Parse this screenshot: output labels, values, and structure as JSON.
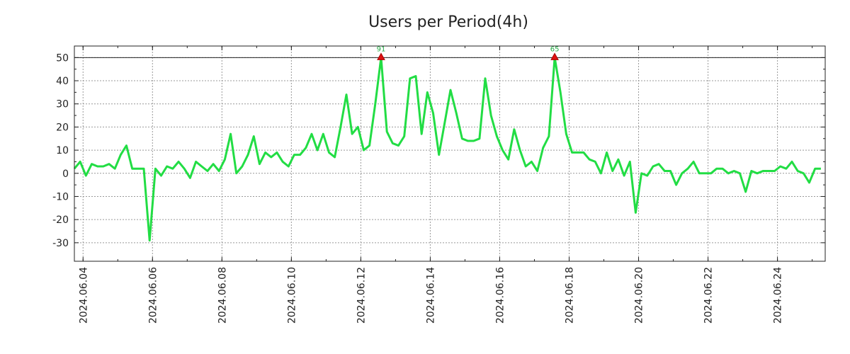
{
  "chart_data": {
    "type": "line",
    "title": "Users per Period(4h)",
    "xlabel": "",
    "ylabel": "",
    "ylim": [
      -38,
      55
    ],
    "yticks": [
      50,
      40,
      30,
      20,
      10,
      0,
      -10,
      -20,
      -30
    ],
    "ytick_labels": [
      "50",
      "40",
      "30",
      "20",
      "10",
      "0",
      "-10",
      "-20",
      "-30"
    ],
    "x_start": "2024-06-03 18:00",
    "x_end": "2024-06-25 09:00",
    "x_step_hours": 4,
    "xticks": [
      "2024-06-04",
      "2024-06-06",
      "2024-06-08",
      "2024-06-10",
      "2024-06-12",
      "2024-06-14",
      "2024-06-16",
      "2024-06-18",
      "2024-06-20",
      "2024-06-22",
      "2024-06-24"
    ],
    "xtick_labels": [
      "2024.06.04",
      "2024.06.06",
      "2024.06.08",
      "2024.06.10",
      "2024.06.12",
      "2024.06.14",
      "2024.06.16",
      "2024.06.18",
      "2024.06.20",
      "2024.06.22",
      "2024.06.24"
    ],
    "grid": true,
    "reference_line": 50,
    "series": [
      {
        "name": "Users",
        "color": "#22dd44",
        "values": [
          2,
          5,
          -1,
          4,
          3,
          3,
          4,
          2,
          8,
          12,
          2,
          2,
          2,
          -29,
          2,
          -1,
          3,
          2,
          5,
          2,
          -2,
          5,
          3,
          1,
          4,
          1,
          6,
          17,
          0,
          3,
          8,
          16,
          4,
          9,
          7,
          9,
          5,
          3,
          8,
          8,
          11,
          17,
          10,
          17,
          9,
          7,
          20,
          34,
          17,
          20,
          10,
          12,
          30,
          50,
          18,
          13,
          12,
          16,
          41,
          42,
          17,
          35,
          26,
          8,
          22,
          36,
          26,
          15,
          14,
          14,
          15,
          41,
          25,
          16,
          10,
          6,
          19,
          10,
          3,
          5,
          1,
          11,
          16,
          50,
          35,
          17,
          9,
          9,
          9,
          6,
          5,
          0,
          9,
          1,
          6,
          -1,
          5,
          -17,
          0,
          -1,
          3,
          4,
          1,
          1,
          -5,
          0,
          2,
          5,
          0,
          0,
          0,
          2,
          2,
          0,
          1,
          0,
          -8,
          1,
          0,
          1,
          1,
          1,
          3,
          2,
          5,
          1,
          0,
          -4,
          2,
          2
        ]
      }
    ],
    "peaks": [
      {
        "label": "91",
        "value": 50,
        "time": "2024-06-12 14:00"
      },
      {
        "label": "65",
        "value": 50,
        "time": "2024-06-17 14:00"
      }
    ]
  }
}
